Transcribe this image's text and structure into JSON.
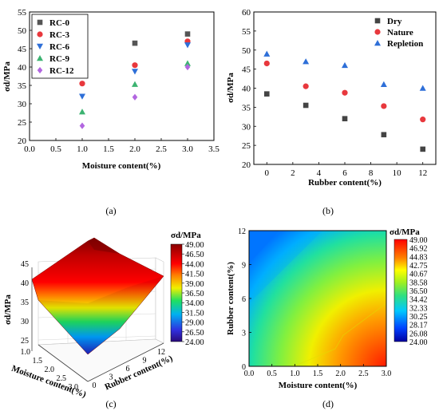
{
  "captions": [
    "(a)",
    "(b)",
    "(c)",
    "(d)"
  ],
  "colors": {
    "RC-0": "#555555",
    "RC-3": "#e8383d",
    "RC-6": "#2e6fd8",
    "RC-9": "#3cb371",
    "RC-12": "#b266e0",
    "Dry": "#444444",
    "Nature": "#e8383d",
    "Repletion": "#2e6fd8"
  },
  "chart_data": [
    {
      "id": "a",
      "type": "scatter",
      "xlabel": "Moisture content(%)",
      "ylabel": "σd/MPa",
      "xlim": [
        0.0,
        3.5
      ],
      "ylim": [
        20,
        55
      ],
      "xticks": [
        "0.0",
        "0.5",
        "1.0",
        "1.5",
        "2.0",
        "2.5",
        "3.0",
        "3.5"
      ],
      "yticks": [
        "20",
        "25",
        "30",
        "35",
        "40",
        "45",
        "50",
        "55"
      ],
      "legend": "top-left",
      "x": [
        1,
        2,
        3
      ],
      "series": [
        {
          "name": "RC-0",
          "marker": "square",
          "values": [
            38.5,
            46.5,
            49.0
          ]
        },
        {
          "name": "RC-3",
          "marker": "circle",
          "values": [
            35.5,
            40.5,
            47.0
          ]
        },
        {
          "name": "RC-6",
          "marker": "triangle-down",
          "values": [
            32.0,
            38.8,
            46.0
          ]
        },
        {
          "name": "RC-9",
          "marker": "triangle-up",
          "values": [
            27.8,
            35.3,
            41.0
          ]
        },
        {
          "name": "RC-12",
          "marker": "diamond",
          "values": [
            24.0,
            31.8,
            40.0
          ]
        }
      ]
    },
    {
      "id": "b",
      "type": "scatter",
      "xlabel": "Rubber content(%)",
      "ylabel": "σd/MPa",
      "xlim": [
        -1,
        13
      ],
      "ylim": [
        20,
        60
      ],
      "xticks": [
        "0",
        "2",
        "4",
        "6",
        "8",
        "10",
        "12"
      ],
      "yticks": [
        "20",
        "25",
        "30",
        "35",
        "40",
        "45",
        "50",
        "55",
        "60"
      ],
      "legend": "top-right",
      "x": [
        0,
        3,
        6,
        9,
        12
      ],
      "series": [
        {
          "name": "Dry",
          "marker": "square",
          "values": [
            38.5,
            35.5,
            32.0,
            27.8,
            24.0
          ]
        },
        {
          "name": "Nature",
          "marker": "circle",
          "values": [
            46.5,
            40.5,
            38.8,
            35.3,
            31.8
          ]
        },
        {
          "name": "Repletion",
          "marker": "triangle-up",
          "values": [
            49.0,
            47.0,
            46.0,
            41.0,
            40.0
          ]
        }
      ]
    },
    {
      "id": "c",
      "type": "surface3d",
      "xlabel": "Moisture content(%)",
      "ylabel": "Rubber content(%)",
      "zlabel": "σd/MPa",
      "colorbar_title": "σd/MPa",
      "colorbar_ticks": [
        "49.00",
        "46.50",
        "44.00",
        "41.50",
        "39.00",
        "36.50",
        "34.00",
        "31.50",
        "29.00",
        "26.50",
        "24.00"
      ],
      "x_ticks": [
        "1.0",
        "1.5",
        "2.0",
        "2.5",
        "3.0"
      ],
      "y_ticks": [
        "0",
        "3",
        "6",
        "9",
        "12"
      ],
      "z_ticks": [
        "25",
        "30",
        "35",
        "40",
        "45"
      ]
    },
    {
      "id": "d",
      "type": "heatmap",
      "xlabel": "Moisture content(%)",
      "ylabel": "Rubber content(%)",
      "colorbar_title": "σd/MPa",
      "xlim": [
        0.0,
        3.0
      ],
      "ylim": [
        0,
        12
      ],
      "xticks": [
        "0.0",
        "0.5",
        "1.0",
        "1.5",
        "2.0",
        "2.5",
        "3.0"
      ],
      "yticks": [
        "0",
        "3",
        "6",
        "9",
        "12"
      ],
      "colorbar_ticks": [
        "49.00",
        "46.92",
        "44.83",
        "42.75",
        "40.67",
        "38.58",
        "36.50",
        "34.42",
        "32.33",
        "30.25",
        "28.17",
        "26.08",
        "24.00"
      ]
    }
  ]
}
